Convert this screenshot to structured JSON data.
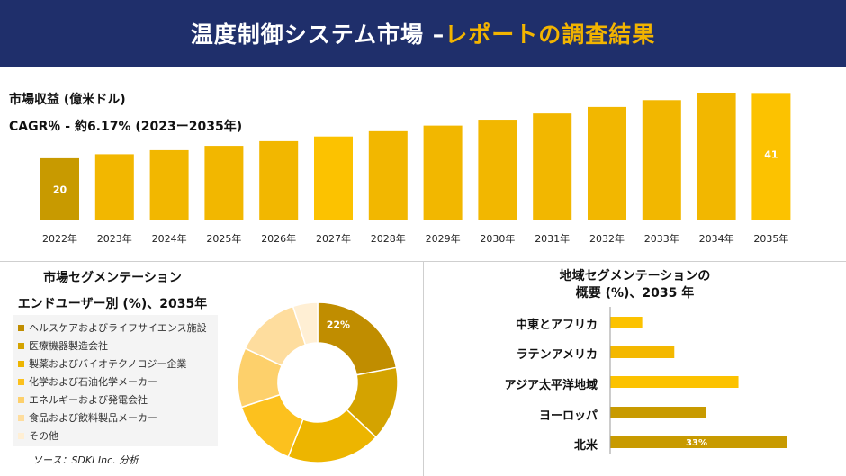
{
  "header": {
    "title": "温度制御システム市場 –",
    "accent": "レポートの調査結果"
  },
  "revenue": {
    "label": "市場収益 (億米ドル)",
    "cagr": "CAGR％ - 約6.17% (2023ー2035年)"
  },
  "chart_data": [
    {
      "type": "bar",
      "categories": [
        "2022年",
        "2023年",
        "2024年",
        "2025年",
        "2026年",
        "2027年",
        "2028年",
        "2029年",
        "2030年",
        "2031年",
        "2032年",
        "2033年",
        "2034年",
        "2035年"
      ],
      "values": [
        20,
        21.3,
        22.6,
        24,
        25.5,
        27,
        28.7,
        30.5,
        32.4,
        34.4,
        36.5,
        38.7,
        41.1,
        41
      ],
      "data_labels": {
        "0": "20",
        "13": "41"
      },
      "highlight_colors": {
        "0": "#c89a00",
        "5": "#fcc200",
        "13": "#fcc200"
      },
      "title": "",
      "xlabel": "",
      "ylabel": ""
    },
    {
      "type": "pie",
      "title": "市場セグメンテーション",
      "subtitle": "エンドユーザー別 (%)、2035年",
      "categories": [
        "ヘルスケアおよびライフサイエンス施設",
        "医療機器製造会社",
        "製薬およびバイオテクノロジー企業",
        "化学および石油化学メーカー",
        "エネルギーおよび発電会社",
        "食品および飲料製品メーカー",
        "その他"
      ],
      "values": [
        22,
        15,
        19,
        14,
        12,
        13,
        5
      ],
      "colors": [
        "#c08d00",
        "#d4a300",
        "#edb500",
        "#fcc11e",
        "#fdd06b",
        "#fedd9e",
        "#ffefd4"
      ],
      "data_labels": {
        "0": "22%"
      }
    },
    {
      "type": "bar",
      "orientation": "horizontal",
      "title": "地域セグメンテーションの",
      "subtitle": "概要 (%)、2035 年",
      "categories": [
        "中東とアフリカ",
        "ラテンアメリカ",
        "アジア太平洋地域",
        "ヨーロッパ",
        "北米"
      ],
      "values": [
        6,
        12,
        24,
        18,
        33
      ],
      "colors": [
        "#fcc200",
        "#f4b800",
        "#fcc200",
        "#c89a00",
        "#c89a00"
      ],
      "data_labels": {
        "4": "33%"
      }
    }
  ],
  "source": "ソース：SDKI Inc. 分析"
}
